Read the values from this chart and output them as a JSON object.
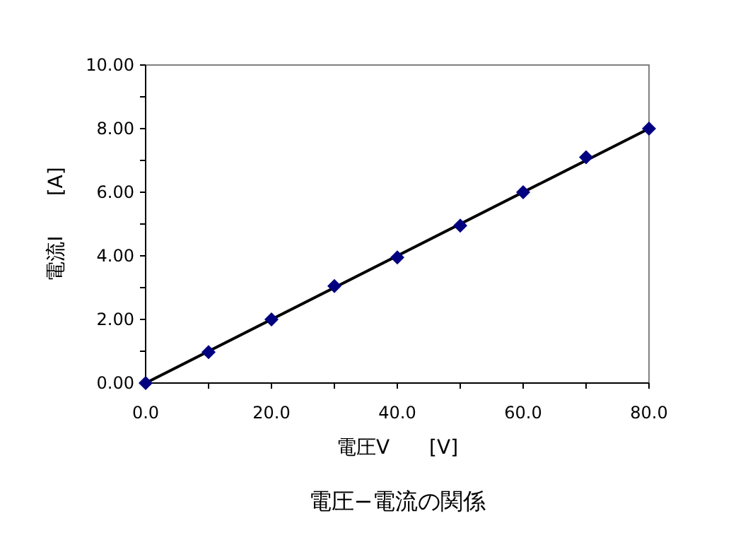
{
  "chart_data": {
    "type": "scatter",
    "title": "電圧−電流の関係",
    "xlabel": "電圧V　　[V]",
    "ylabel": "電流I　　[A]",
    "x": [
      0,
      10,
      20,
      30,
      40,
      50,
      60,
      70,
      80
    ],
    "series": [
      {
        "color": "#000080",
        "marker": "diamond",
        "values": [
          0,
          0.97,
          2.0,
          3.05,
          3.95,
          4.95,
          6.0,
          7.1,
          8.0
        ]
      },
      {
        "type": "line",
        "color": "#000000",
        "x": [
          0,
          80
        ],
        "values": [
          0,
          8.0
        ]
      }
    ],
    "xlim": [
      0,
      80
    ],
    "ylim": [
      0,
      10
    ],
    "xticks": [
      {
        "value": 0,
        "label": "0.0"
      },
      {
        "value": 10,
        "label": null
      },
      {
        "value": 20,
        "label": "20.0"
      },
      {
        "value": 30,
        "label": null
      },
      {
        "value": 40,
        "label": "40.0"
      },
      {
        "value": 50,
        "label": null
      },
      {
        "value": 60,
        "label": "60.0"
      },
      {
        "value": 70,
        "label": null
      },
      {
        "value": 80,
        "label": "80.0"
      }
    ],
    "yticks": [
      {
        "value": 0,
        "label": "0.00"
      },
      {
        "value": 1,
        "label": null
      },
      {
        "value": 2,
        "label": "2.00"
      },
      {
        "value": 3,
        "label": null
      },
      {
        "value": 4,
        "label": "4.00"
      },
      {
        "value": 5,
        "label": null
      },
      {
        "value": 6,
        "label": "6.00"
      },
      {
        "value": 7,
        "label": null
      },
      {
        "value": 8,
        "label": "8.00"
      },
      {
        "value": 9,
        "label": null
      },
      {
        "value": 10,
        "label": "10.00"
      }
    ],
    "grid": false
  }
}
